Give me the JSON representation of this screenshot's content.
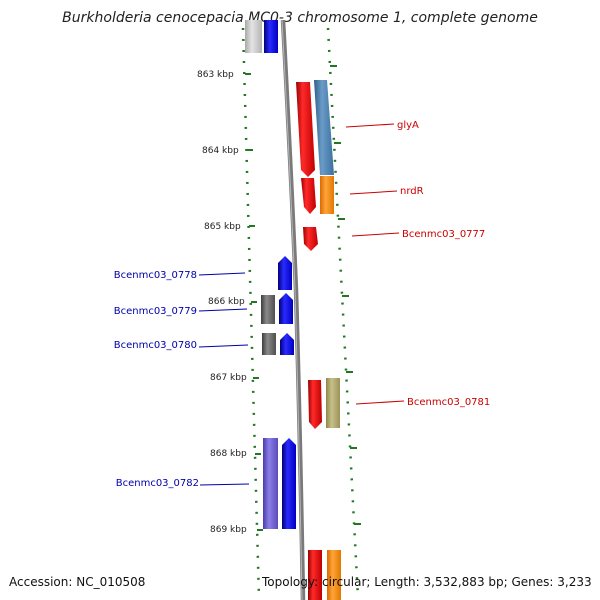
{
  "title": "Burkholderia cenocepacia MC0-3 chromosome 1, complete genome",
  "accession": "Accession: NC_010508",
  "stats": "Topology: circular; Length: 3,532,883 bp; Genes: 3,233",
  "ticks": [
    "863 kbp",
    "864 kbp",
    "865 kbp",
    "866 kbp",
    "867 kbp",
    "868 kbp",
    "869 kbp"
  ],
  "genes": {
    "glyA": "glyA",
    "nrdR": "nrdR",
    "bcenmc03_0777": "Bcenmc03_0777",
    "bcenmc03_0778": "Bcenmc03_0778",
    "bcenmc03_0779": "Bcenmc03_0779",
    "bcenmc03_0780": "Bcenmc03_0780",
    "bcenmc03_0781": "Bcenmc03_0781",
    "bcenmc03_0782": "Bcenmc03_0782"
  },
  "colors": {
    "forward_strand_label": "#cc0000",
    "reverse_strand_label": "#0000aa",
    "tick": "#227722",
    "backbone": "#808080"
  }
}
